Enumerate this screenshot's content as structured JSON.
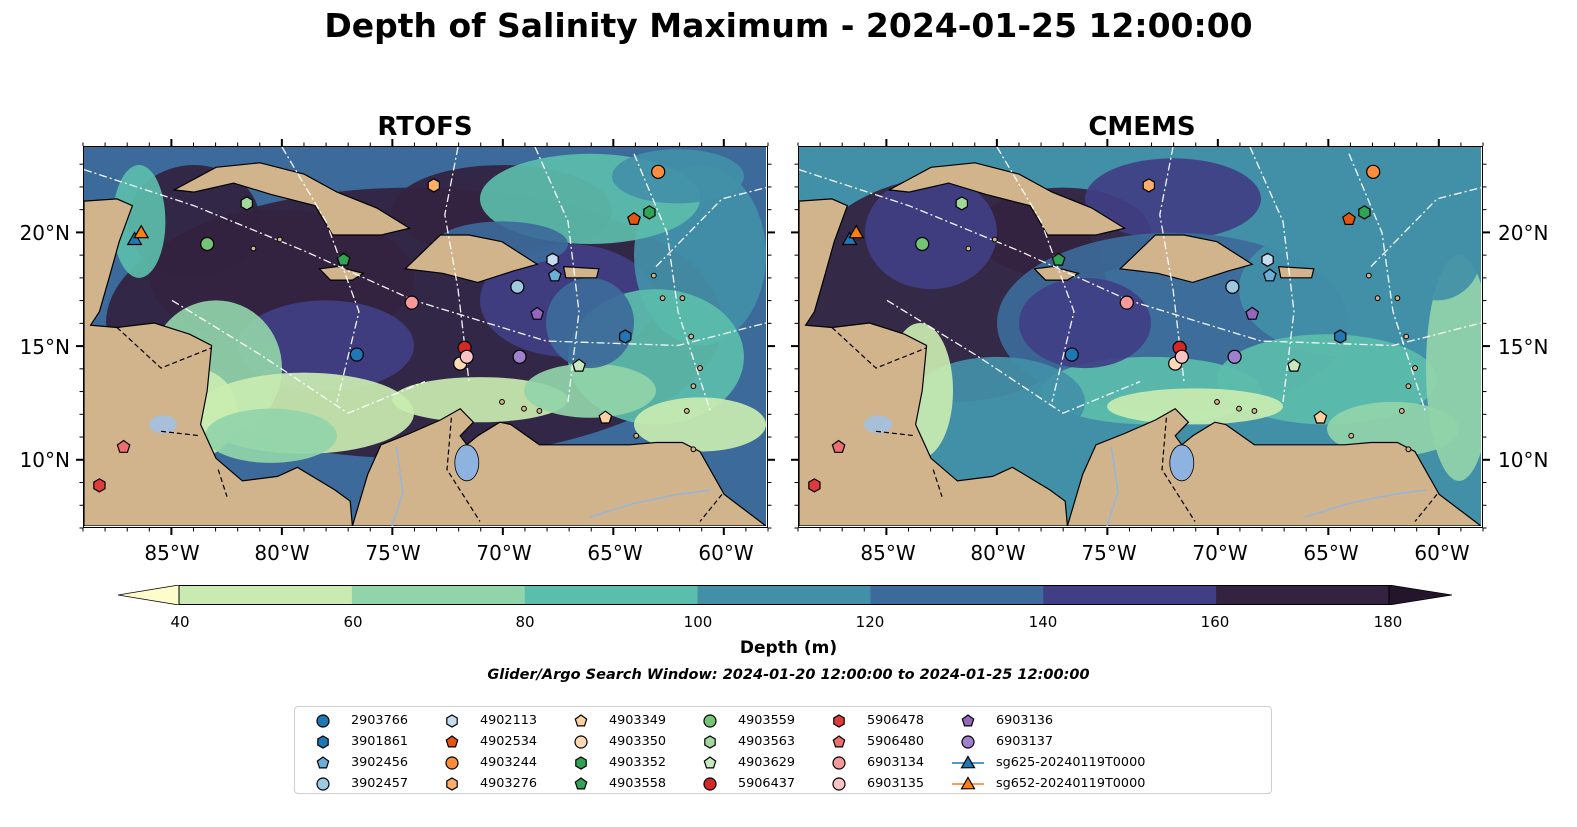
{
  "title": "Depth of Salinity Maximum - 2024-01-25 12:00:00",
  "panels": [
    {
      "title": "RTOFS"
    },
    {
      "title": "CMEMS"
    }
  ],
  "map_axes": {
    "lon_ticks": [
      "85°W",
      "80°W",
      "75°W",
      "70°W",
      "65°W",
      "60°W"
    ],
    "lat_ticks": [
      "20°N",
      "15°N",
      "10°N"
    ]
  },
  "colorbar": {
    "label": "Depth (m)",
    "ticks": [
      "40",
      "60",
      "80",
      "100",
      "120",
      "140",
      "160",
      "180"
    ],
    "colors": [
      "#fdfdcc",
      "#c9ebb1",
      "#91d4a9",
      "#5bbdab",
      "#4290a8",
      "#3c6a9a",
      "#403f85",
      "#332240",
      "#24162a"
    ],
    "extend": "both"
  },
  "land_color": "#d2b48c",
  "lake_color": "#8fb3e0",
  "note": "Glider/Argo Search Window: 2024-01-20 12:00:00 to 2024-01-25 12:00:00",
  "legend": [
    {
      "label": "2903766",
      "marker": "circle",
      "color": "#1f77b4"
    },
    {
      "label": "3901861",
      "marker": "hexagon",
      "color": "#1f77b4"
    },
    {
      "label": "3902456",
      "marker": "pentagon",
      "color": "#6baed6"
    },
    {
      "label": "3902457",
      "marker": "circle",
      "color": "#9ecae1"
    },
    {
      "label": "4902113",
      "marker": "hexagon",
      "color": "#c6dbef"
    },
    {
      "label": "4902534",
      "marker": "pentagon",
      "color": "#e6550d"
    },
    {
      "label": "4903244",
      "marker": "circle",
      "color": "#fd8d3c"
    },
    {
      "label": "4903276",
      "marker": "hexagon",
      "color": "#fdae6b"
    },
    {
      "label": "4903349",
      "marker": "pentagon",
      "color": "#fdd0a2"
    },
    {
      "label": "4903350",
      "marker": "circle",
      "color": "#fdd9b5"
    },
    {
      "label": "4903352",
      "marker": "hexagon",
      "color": "#31a354"
    },
    {
      "label": "4903558",
      "marker": "pentagon",
      "color": "#31a354"
    },
    {
      "label": "4903559",
      "marker": "circle",
      "color": "#74c476"
    },
    {
      "label": "4903563",
      "marker": "hexagon",
      "color": "#a1d99b"
    },
    {
      "label": "4903629",
      "marker": "pentagon",
      "color": "#c7e9c0"
    },
    {
      "label": "5906437",
      "marker": "circle",
      "color": "#d62728"
    },
    {
      "label": "5906478",
      "marker": "hexagon",
      "color": "#e03a3a"
    },
    {
      "label": "5906480",
      "marker": "pentagon",
      "color": "#ef6f6f"
    },
    {
      "label": "6903134",
      "marker": "circle",
      "color": "#f7999a"
    },
    {
      "label": "6903135",
      "marker": "circle",
      "color": "#fbc4c4"
    },
    {
      "label": "6903136",
      "marker": "pentagon",
      "color": "#9467bd"
    },
    {
      "label": "6903137",
      "marker": "circle",
      "color": "#a07fcf"
    },
    {
      "label": "sg625-20240119T0000",
      "marker": "triangle",
      "color": "#1f77b4"
    },
    {
      "label": "sg652-20240119T0000",
      "marker": "triangle",
      "color": "#ff7f0e"
    }
  ],
  "stations": [
    {
      "id": "2903766",
      "lon": -76.6,
      "lat": 14.6
    },
    {
      "id": "3901861",
      "lon": -64.4,
      "lat": 15.4
    },
    {
      "id": "3902456",
      "lon": -67.6,
      "lat": 18.1
    },
    {
      "id": "3902457",
      "lon": -69.3,
      "lat": 17.6
    },
    {
      "id": "4902113",
      "lon": -67.7,
      "lat": 18.8
    },
    {
      "id": "4902534",
      "lon": -64.0,
      "lat": 20.6
    },
    {
      "id": "4903244",
      "lon": -62.9,
      "lat": 22.7
    },
    {
      "id": "4903276",
      "lon": -73.1,
      "lat": 22.1
    },
    {
      "id": "4903349",
      "lon": -65.3,
      "lat": 11.8
    },
    {
      "id": "4903350",
      "lon": -71.9,
      "lat": 14.2
    },
    {
      "id": "4903352",
      "lon": -63.3,
      "lat": 20.9
    },
    {
      "id": "4903558",
      "lon": -77.2,
      "lat": 18.8
    },
    {
      "id": "4903559",
      "lon": -83.4,
      "lat": 19.5
    },
    {
      "id": "4903563",
      "lon": -81.6,
      "lat": 21.3
    },
    {
      "id": "4903629",
      "lon": -66.5,
      "lat": 14.1
    },
    {
      "id": "5906437",
      "lon": -71.7,
      "lat": 14.9
    },
    {
      "id": "5906478",
      "lon": -88.3,
      "lat": 8.8
    },
    {
      "id": "5906480",
      "lon": -87.2,
      "lat": 10.5
    },
    {
      "id": "6903134",
      "lon": -74.1,
      "lat": 16.9
    },
    {
      "id": "6903135",
      "lon": -71.6,
      "lat": 14.5
    },
    {
      "id": "6903136",
      "lon": -68.4,
      "lat": 16.4
    },
    {
      "id": "6903137",
      "lon": -69.2,
      "lat": 14.5
    },
    {
      "id": "sg625-20240119T0000",
      "lon": -86.7,
      "lat": 19.7
    },
    {
      "id": "sg652-20240119T0000",
      "lon": -86.4,
      "lat": 20.0
    }
  ]
}
